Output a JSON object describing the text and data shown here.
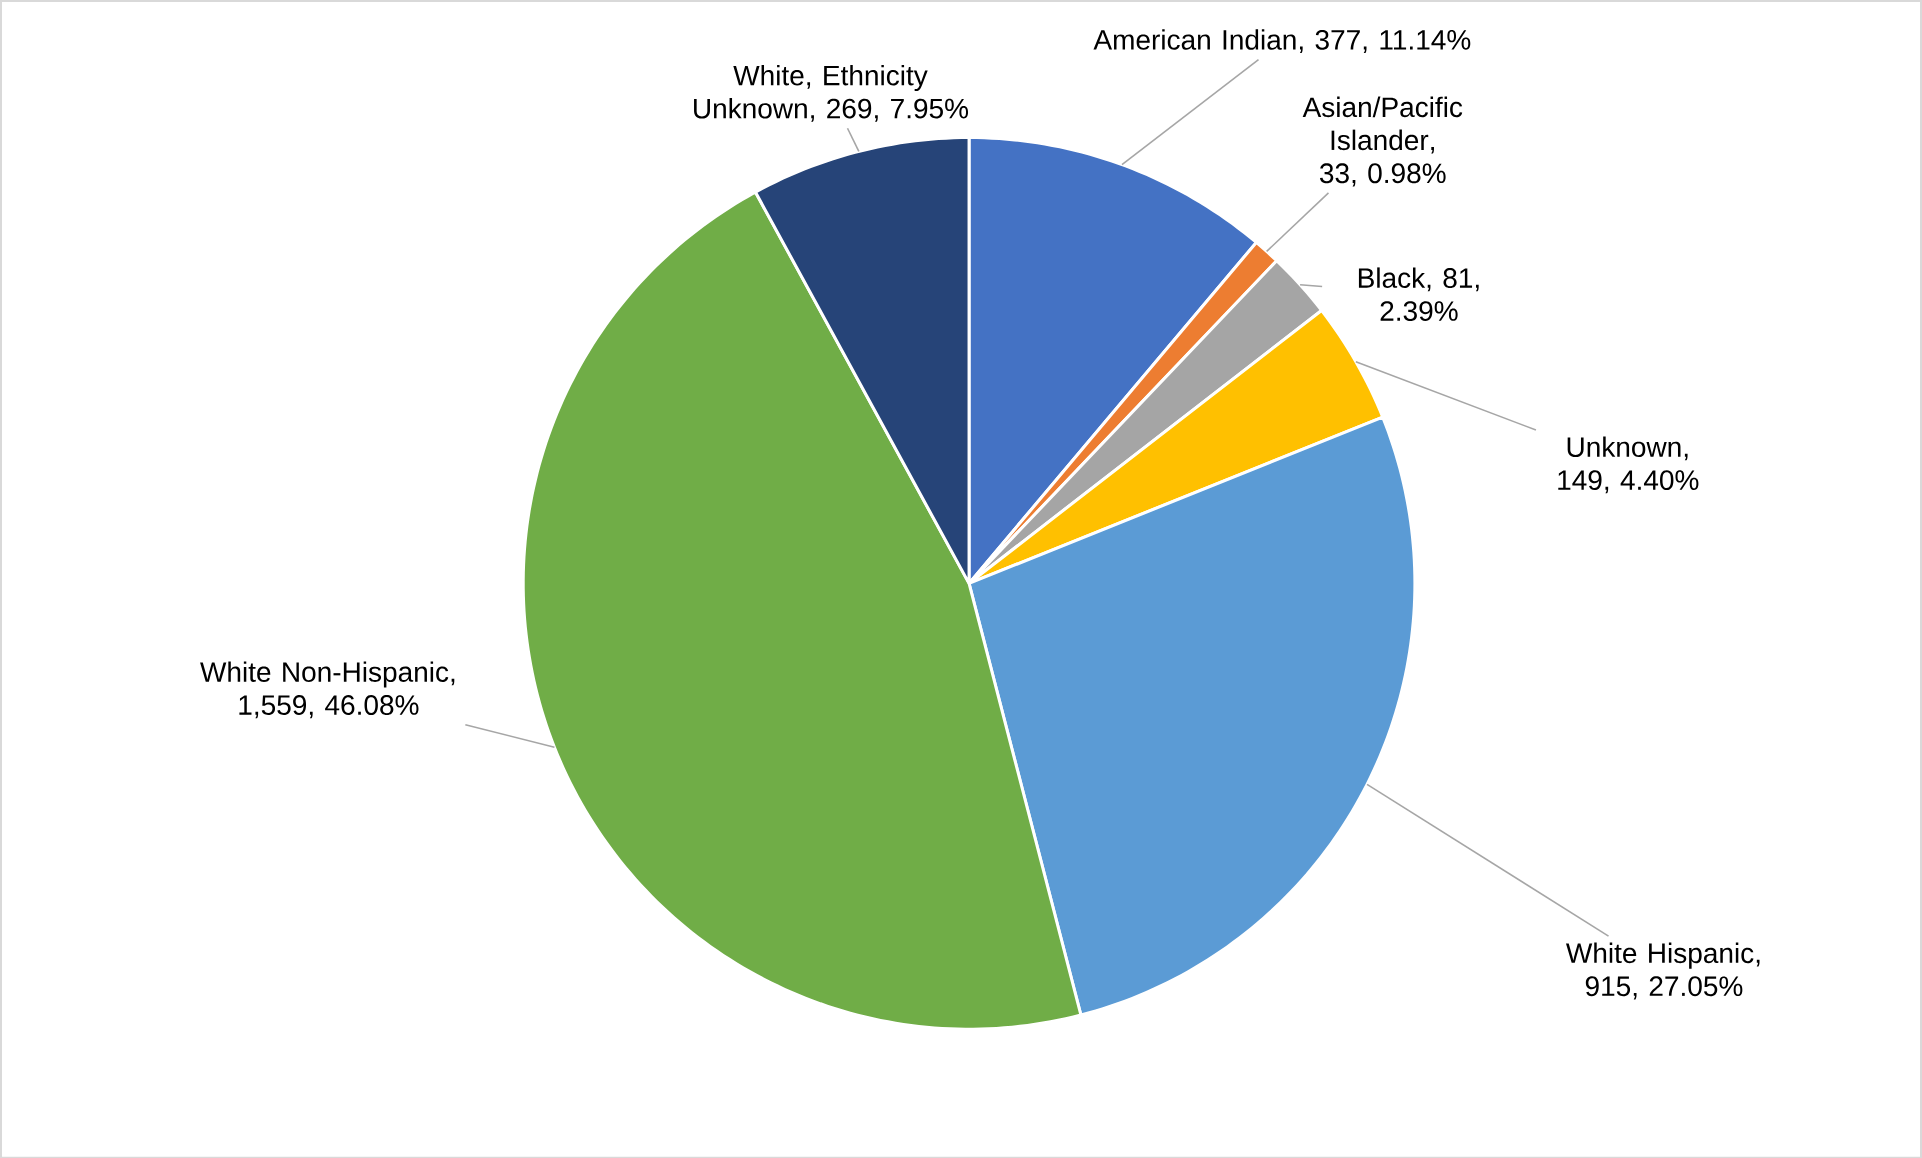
{
  "chart_data": {
    "type": "pie",
    "categories": [
      "American Indian",
      "Asian/Pacific Islander",
      "Black",
      "Unknown",
      "White Hispanic",
      "White Non-Hispanic",
      "White, Ethnicity Unknown"
    ],
    "values": [
      377,
      33,
      81,
      149,
      915,
      1559,
      269
    ],
    "value_labels": [
      ", 377, 11.14%",
      ", 33, 0.98%",
      ", 81, 2.39%",
      ", 149, 4.40%",
      ", 915, 27.05%",
      ", 1,559, 46.08%",
      ", 269, 7.95%"
    ],
    "colors": [
      "#4472c4",
      "#ed7d31",
      "#a5a5a5",
      "#ffc000",
      "#5b9bd5",
      "#70ad47",
      "#264478"
    ]
  }
}
